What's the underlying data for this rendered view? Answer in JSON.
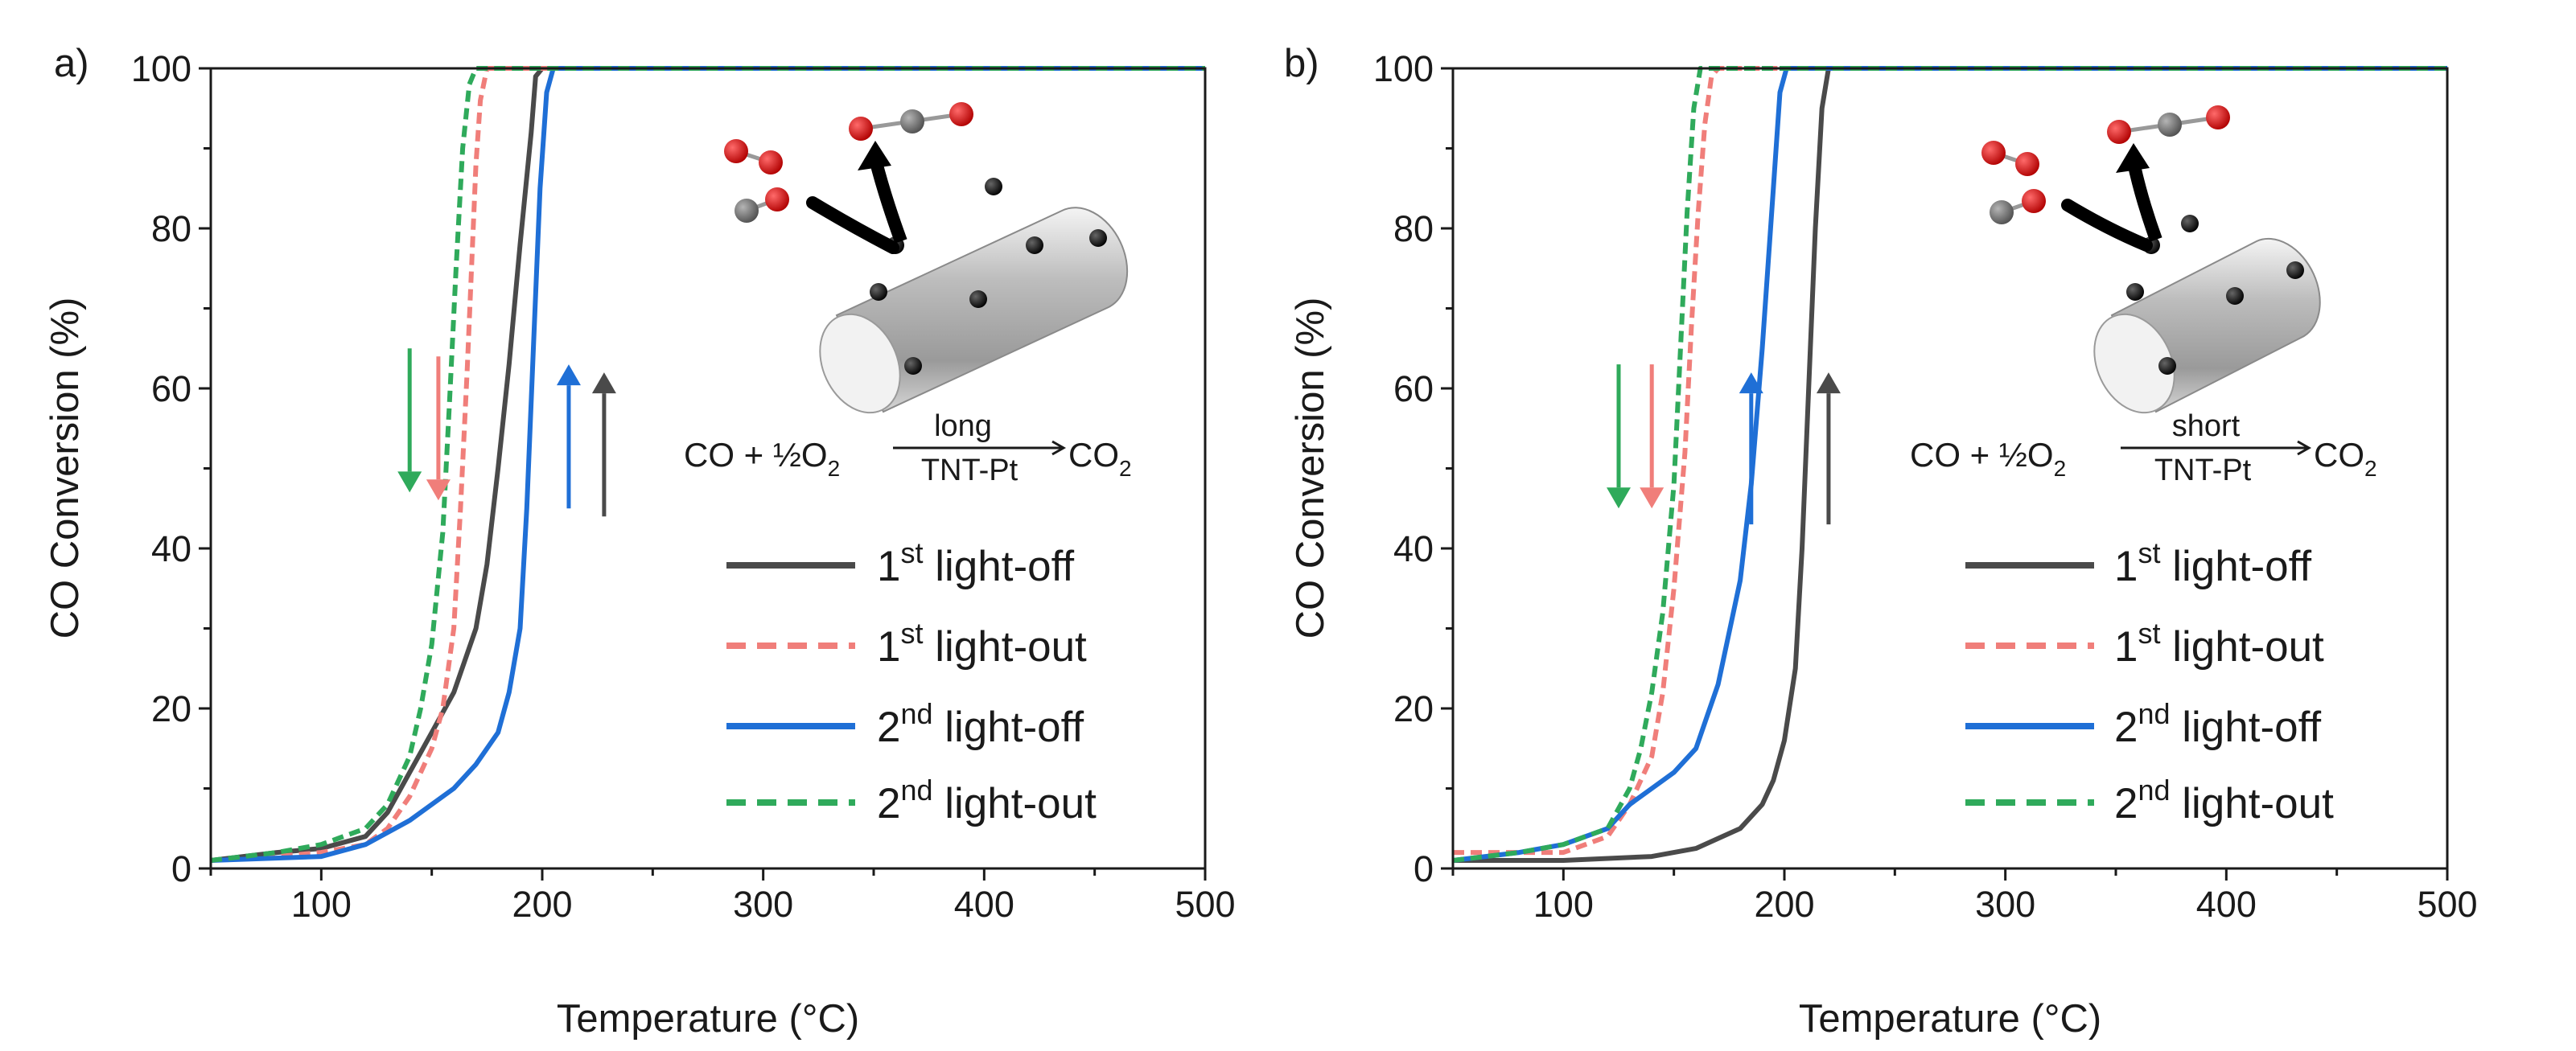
{
  "colors": {
    "first_light_off": "#4a4a4a",
    "first_light_out": "#f07e7a",
    "second_light_off": "#1f6fd6",
    "second_light_out": "#2faa5b",
    "axis": "#1a1a1a"
  },
  "chart_data": [
    {
      "type": "line",
      "panel_label": "a)",
      "xlabel": "Temperature (°C)",
      "ylabel": "CO Conversion (%)",
      "xlim": [
        50,
        500
      ],
      "ylim": [
        0,
        100
      ],
      "xticks": [
        "100",
        "200",
        "300",
        "400",
        "500"
      ],
      "yticks": [
        "0",
        "20",
        "40",
        "60",
        "80",
        "100"
      ],
      "grid": false,
      "legend_position": "bottom-right",
      "equation": {
        "lhs": "CO + ½O",
        "lhs_sub": "2",
        "above": "long",
        "below": "TNT-Pt",
        "rhs": "CO",
        "rhs_sub": "2"
      },
      "series": [
        {
          "name": "1st light-off",
          "label_base": "1",
          "label_sup": "st",
          "label_rest": " light-off",
          "style": "solid",
          "color_key": "first_light_off",
          "x": [
            50,
            80,
            100,
            120,
            130,
            140,
            150,
            160,
            170,
            175,
            180,
            185,
            190,
            195,
            197,
            200,
            500
          ],
          "y": [
            1,
            2,
            2.5,
            4,
            7,
            12,
            17,
            22,
            30,
            38,
            50,
            63,
            78,
            92,
            99,
            100,
            100
          ]
        },
        {
          "name": "1st light-out",
          "label_base": "1",
          "label_sup": "st",
          "label_rest": " light-out",
          "style": "dashed",
          "color_key": "first_light_out",
          "x": [
            50,
            80,
            100,
            120,
            130,
            140,
            150,
            155,
            160,
            163,
            166,
            168,
            170,
            172,
            175,
            500
          ],
          "y": [
            1,
            1.5,
            2,
            3,
            5,
            9,
            15,
            20,
            30,
            45,
            62,
            75,
            88,
            96,
            100,
            100
          ]
        },
        {
          "name": "2nd light-off",
          "label_base": "2",
          "label_sup": "nd",
          "label_rest": " light-off",
          "style": "solid",
          "color_key": "second_light_off",
          "x": [
            50,
            100,
            120,
            140,
            160,
            170,
            180,
            185,
            190,
            193,
            196,
            199,
            202,
            205,
            500
          ],
          "y": [
            1,
            1.5,
            3,
            6,
            10,
            13,
            17,
            22,
            30,
            45,
            65,
            85,
            97,
            100,
            100
          ]
        },
        {
          "name": "2nd light-out",
          "label_base": "2",
          "label_sup": "nd",
          "label_rest": " light-out",
          "style": "dashed",
          "color_key": "second_light_out",
          "x": [
            50,
            80,
            100,
            120,
            130,
            140,
            145,
            150,
            155,
            158,
            161,
            164,
            167,
            170,
            500
          ],
          "y": [
            1,
            2,
            3,
            5,
            8,
            14,
            20,
            28,
            42,
            58,
            75,
            90,
            98,
            100,
            100
          ]
        }
      ],
      "arrows": [
        {
          "color_key": "second_light_out",
          "x": 140,
          "y_from": 65,
          "y_to": 47
        },
        {
          "color_key": "first_light_out",
          "x": 153,
          "y_from": 64,
          "y_to": 46
        },
        {
          "color_key": "second_light_off",
          "x": 212,
          "y_from": 45,
          "y_to": 63
        },
        {
          "color_key": "first_light_off",
          "x": 228,
          "y_from": 44,
          "y_to": 62
        }
      ]
    },
    {
      "type": "line",
      "panel_label": "b)",
      "xlabel": "Temperature (°C)",
      "ylabel": "CO Conversion (%)",
      "xlim": [
        50,
        500
      ],
      "ylim": [
        0,
        100
      ],
      "xticks": [
        "100",
        "200",
        "300",
        "400",
        "500"
      ],
      "yticks": [
        "0",
        "20",
        "40",
        "60",
        "80",
        "100"
      ],
      "grid": false,
      "legend_position": "bottom-right",
      "equation": {
        "lhs": "CO + ½O",
        "lhs_sub": "2",
        "above": "short",
        "below": "TNT-Pt",
        "rhs": "CO",
        "rhs_sub": "2"
      },
      "series": [
        {
          "name": "1st light-off",
          "label_base": "1",
          "label_sup": "st",
          "label_rest": " light-off",
          "style": "solid",
          "color_key": "first_light_off",
          "x": [
            50,
            100,
            140,
            160,
            180,
            190,
            195,
            200,
            205,
            208,
            211,
            214,
            217,
            220,
            500
          ],
          "y": [
            1,
            1,
            1.5,
            2.5,
            5,
            8,
            11,
            16,
            25,
            40,
            60,
            80,
            95,
            100,
            100
          ]
        },
        {
          "name": "1st light-out",
          "label_base": "1",
          "label_sup": "st",
          "label_rest": " light-out",
          "style": "dashed",
          "color_key": "first_light_out",
          "x": [
            50,
            80,
            100,
            120,
            130,
            140,
            145,
            150,
            155,
            158,
            161,
            164,
            167,
            170,
            500
          ],
          "y": [
            2,
            2,
            2,
            4,
            8,
            14,
            22,
            35,
            52,
            68,
            82,
            93,
            99,
            100,
            100
          ]
        },
        {
          "name": "2nd light-off",
          "label_base": "2",
          "label_sup": "nd",
          "label_rest": " light-off",
          "style": "solid",
          "color_key": "second_light_off",
          "x": [
            50,
            80,
            100,
            120,
            130,
            140,
            150,
            160,
            170,
            180,
            185,
            190,
            195,
            198,
            201,
            500
          ],
          "y": [
            1,
            2,
            3,
            5,
            8,
            10,
            12,
            15,
            23,
            36,
            48,
            65,
            85,
            97,
            100,
            100
          ]
        },
        {
          "name": "2nd light-out",
          "label_base": "2",
          "label_sup": "nd",
          "label_rest": " light-out",
          "style": "dashed",
          "color_key": "second_light_out",
          "x": [
            50,
            80,
            100,
            120,
            130,
            135,
            140,
            145,
            150,
            153,
            156,
            159,
            162,
            500
          ],
          "y": [
            1,
            2,
            3,
            5,
            10,
            15,
            22,
            32,
            48,
            65,
            82,
            95,
            100,
            100
          ]
        }
      ],
      "arrows": [
        {
          "color_key": "second_light_out",
          "x": 125,
          "y_from": 63,
          "y_to": 45
        },
        {
          "color_key": "first_light_out",
          "x": 140,
          "y_from": 63,
          "y_to": 45
        },
        {
          "color_key": "second_light_off",
          "x": 185,
          "y_from": 43,
          "y_to": 62
        },
        {
          "color_key": "first_light_off",
          "x": 220,
          "y_from": 43,
          "y_to": 62
        }
      ]
    }
  ]
}
